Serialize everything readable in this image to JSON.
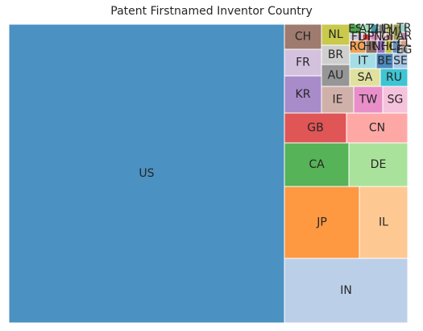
{
  "chart_data": {
    "type": "treemap",
    "title": "Patent Firstnamed Inventor Country",
    "tiles": [
      {
        "label": "US",
        "color": "#4b91c2",
        "show_label": true
      },
      {
        "label": "IN",
        "color": "#bccfe8",
        "show_label": true
      },
      {
        "label": "JP",
        "color": "#fe9841",
        "show_label": true
      },
      {
        "label": "IL",
        "color": "#fec893",
        "show_label": true
      },
      {
        "label": "CA",
        "color": "#56b357",
        "show_label": true
      },
      {
        "label": "DE",
        "color": "#a9e39b",
        "show_label": true
      },
      {
        "label": "GB",
        "color": "#e05555",
        "show_label": true
      },
      {
        "label": "CN",
        "color": "#fea8a6",
        "show_label": true
      },
      {
        "label": "KR",
        "color": "#a88bc9",
        "show_label": true
      },
      {
        "label": "FR",
        "color": "#d4c1de",
        "show_label": true
      },
      {
        "label": "CH",
        "color": "#9f7a6f",
        "show_label": true
      },
      {
        "label": "IE",
        "color": "#d0b1aa",
        "show_label": true
      },
      {
        "label": "AU",
        "color": "#969696",
        "show_label": true
      },
      {
        "label": "BR",
        "color": "#cfcfcf",
        "show_label": true
      },
      {
        "label": "NL",
        "color": "#c9c94c",
        "show_label": true
      },
      {
        "label": "TW",
        "color": "#e88fc9",
        "show_label": true
      },
      {
        "label": "SG",
        "color": "#f6c3dc",
        "show_label": true
      },
      {
        "label": "SA",
        "color": "#e1e19f",
        "show_label": true
      },
      {
        "label": "RU",
        "color": "#3fc4d3",
        "show_label": true
      },
      {
        "label": "IT",
        "color": "#a5dde6",
        "show_label": true
      },
      {
        "label": "BE",
        "color": "#4e89bd",
        "show_label": true
      },
      {
        "label": "SE",
        "color": "#a9c8e6",
        "show_label": true
      },
      {
        "label": "ES",
        "color": "#4da64e",
        "show_label": true
      },
      {
        "label": "RO",
        "color": "#f2a254",
        "show_label": true
      },
      {
        "label": "FI",
        "color": "#cfc0dc",
        "show_label": true
      },
      {
        "label": "AT",
        "color": "#a4ddb9",
        "show_label": true
      },
      {
        "label": "HU",
        "color": "#8e6c63",
        "show_label": true
      },
      {
        "label": "ZA",
        "color": "#3f9aa5",
        "show_label": true
      },
      {
        "label": "DK",
        "color": "#d63b3b",
        "show_label": true
      },
      {
        "label": "PT",
        "color": "#e07fbf",
        "show_label": true
      },
      {
        "label": "NO",
        "color": "#9b6ec4",
        "show_label": true
      },
      {
        "label": "LU",
        "color": "#7f7f7f",
        "show_label": true
      },
      {
        "label": "HK",
        "color": "#c4c34a",
        "show_label": true
      },
      {
        "label": "NZ",
        "color": "#e8b9d0",
        "show_label": true
      },
      {
        "label": "PL",
        "color": "#bbbd6a",
        "show_label": true
      },
      {
        "label": "GR",
        "color": "#a86f5f",
        "show_label": true
      },
      {
        "label": "CZ",
        "color": "#6d8fb8",
        "show_label": true
      },
      {
        "label": "MX",
        "color": "#9b9b5a",
        "show_label": true
      },
      {
        "label": "TR",
        "color": "#9ad0c7",
        "show_label": true
      },
      {
        "label": "AR",
        "color": "#b58aa6",
        "show_label": true
      },
      {
        "label": "CL",
        "color": "#d6a07c",
        "show_label": true
      },
      {
        "label": "EG",
        "color": "#8f8f8f",
        "show_label": true
      }
    ]
  }
}
